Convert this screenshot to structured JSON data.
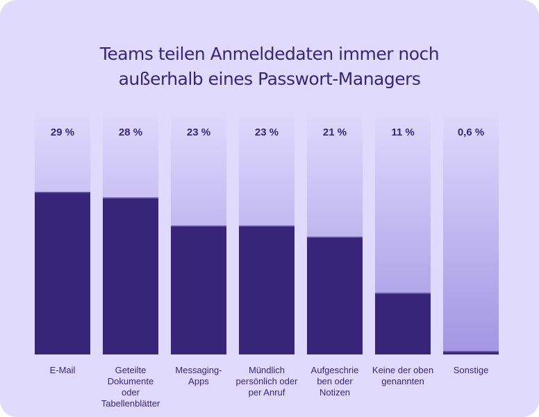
{
  "colors": {
    "background": "#E0DAFE",
    "bar": "#372579",
    "bar_edge": "#6A5BB5",
    "column_top": "#DFD9FD",
    "column_bottom": "#A295E2",
    "text": "#372579"
  },
  "chart_data": {
    "type": "bar",
    "title": "Teams teilen Anmeldedaten immer noch außerhalb eines Passwort-Managers",
    "title_lines": [
      "Teams teilen Anmeldedaten immer noch",
      "außerhalb eines Passwort-Managers"
    ],
    "xlabel": "",
    "ylabel": "",
    "ylim": [
      0,
      43.4
    ],
    "grid": false,
    "legend": "none",
    "categories": [
      "E-Mail",
      "Geteilte Dokumente oder Tabellenblätter",
      "Messaging-Apps",
      "Mündlich persönlich oder per Anruf",
      "Aufgeschrieben oder Notizen",
      "Keine der oben genannten",
      "Sonstige"
    ],
    "category_label_lines": [
      [
        "E-Mail"
      ],
      [
        "Geteilte",
        "Dokumente",
        "oder",
        "Tabellenblätter"
      ],
      [
        "Messaging-",
        "Apps"
      ],
      [
        "Mündlich",
        "persönlich oder",
        "per Anruf"
      ],
      [
        "Aufgeschrie",
        "ben oder",
        "Notizen"
      ],
      [
        "Keine der oben",
        "genannten"
      ],
      [
        "Sonstige"
      ]
    ],
    "values": [
      29,
      28,
      23,
      23,
      21,
      11,
      0.6
    ],
    "value_labels": [
      "29 %",
      "28 %",
      "23 %",
      "23 %",
      "21 %",
      "11 %",
      "0,6 %"
    ],
    "unit": "%"
  }
}
